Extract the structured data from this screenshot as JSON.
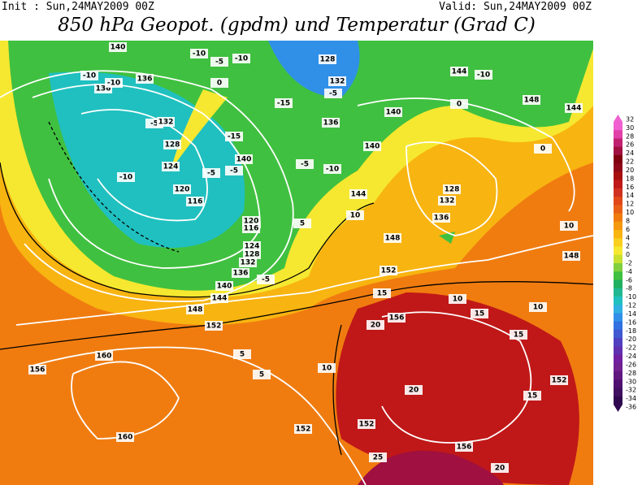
{
  "header": {
    "init": "Init : Sun,24MAY2009 00Z",
    "valid": "Valid: Sun,24MAY2009 00Z",
    "title": "850 hPa Geopot. (gpdm) und Temperatur (Grad C)"
  },
  "colorbar": {
    "labels": [
      32,
      30,
      28,
      26,
      24,
      22,
      20,
      18,
      16,
      14,
      12,
      10,
      8,
      6,
      4,
      2,
      0,
      -2,
      -4,
      -6,
      -8,
      -10,
      -12,
      -14,
      -16,
      -18,
      -20,
      -22,
      -24,
      -26,
      -28,
      -30,
      -32,
      -34,
      -36
    ],
    "colors": [
      "#f060d0",
      "#e040a8",
      "#c02070",
      "#a01040",
      "#800010",
      "#900818",
      "#a81010",
      "#c01818",
      "#d03020",
      "#e04818",
      "#e86018",
      "#f07c10",
      "#f49810",
      "#f8b410",
      "#fad020",
      "#f6e830",
      "#c8e030",
      "#80d040",
      "#40c040",
      "#20b060",
      "#20b890",
      "#20c0c0",
      "#30b0e0",
      "#3090e8",
      "#3070e0",
      "#4058d0",
      "#5040c0",
      "#6030b0",
      "#7020a0",
      "#702090",
      "#601880",
      "#501070",
      "#401060",
      "#300850"
    ]
  },
  "map_labels": [
    "140",
    "-10",
    "-10",
    "128",
    "-10",
    "144",
    "-10",
    "-5",
    "136",
    "136",
    "-10",
    "0",
    "-5",
    "-15",
    "132",
    "140",
    "148",
    "144",
    "-5",
    "132",
    "-15",
    "136",
    "0",
    "140",
    "128",
    "-5",
    "-5",
    "124",
    "140",
    "-10",
    "0",
    "-5",
    "-10",
    "120",
    "116",
    "128",
    "132",
    "144",
    "120",
    "116",
    "136",
    "148",
    "124",
    "128",
    "132",
    "136",
    "140",
    "144",
    "148",
    "152",
    "-5",
    "5",
    "10",
    "152",
    "156",
    "160",
    "156",
    "160",
    "152",
    "152",
    "5",
    "5",
    "10",
    "15",
    "20",
    "25",
    "20",
    "156",
    "15",
    "20",
    "10",
    "15",
    "10",
    "152",
    "15",
    "148",
    "10"
  ]
}
